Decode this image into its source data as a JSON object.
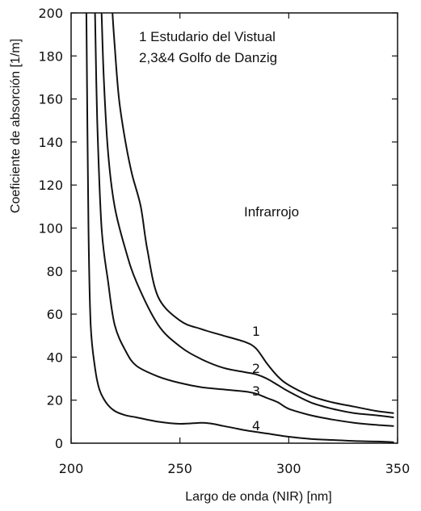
{
  "chart_data": {
    "type": "line",
    "xlabel": "Largo de onda (NIR) [nm]",
    "ylabel": "Coeficiente de absorción [1/m]",
    "xlim": [
      200,
      350
    ],
    "ylim": [
      0,
      200
    ],
    "x_ticks": [
      "200",
      "250",
      "300",
      "350"
    ],
    "y_ticks": [
      "0",
      "20",
      "40",
      "60",
      "80",
      "100",
      "120",
      "140",
      "160",
      "180",
      "200"
    ],
    "x_tick_values": [
      200,
      250,
      300,
      350
    ],
    "y_tick_values": [
      0,
      20,
      40,
      60,
      80,
      100,
      120,
      140,
      160,
      180,
      200
    ],
    "annotations": [
      "1 Estudario del Vistual",
      "2,3&4 Golfo de Danzig",
      "Infrarrojo"
    ],
    "grid": false,
    "series": [
      {
        "label": "1",
        "x": [
          219,
          220,
          222,
          225,
          228,
          232,
          235,
          240,
          250,
          260,
          270,
          280,
          285,
          290,
          295,
          300,
          310,
          320,
          330,
          340,
          348
        ],
        "y": [
          200,
          185,
          160,
          140,
          125,
          110,
          90,
          68,
          57,
          53,
          50,
          47,
          44,
          37,
          31,
          27,
          22,
          19,
          17,
          15,
          14
        ]
      },
      {
        "label": "2",
        "x": [
          214,
          215,
          217,
          220,
          225,
          230,
          240,
          250,
          260,
          270,
          280,
          285,
          290,
          295,
          300,
          310,
          320,
          330,
          340,
          348
        ],
        "y": [
          200,
          170,
          135,
          110,
          90,
          75,
          55,
          45,
          39,
          35,
          33,
          32,
          30,
          27,
          24,
          19,
          16,
          14,
          13,
          12
        ]
      },
      {
        "label": "3",
        "x": [
          211,
          212,
          214,
          217,
          220,
          225,
          230,
          240,
          250,
          260,
          270,
          280,
          285,
          290,
          295,
          300,
          310,
          320,
          330,
          340,
          348
        ],
        "y": [
          200,
          150,
          100,
          75,
          55,
          43,
          36,
          31,
          28,
          26,
          25,
          24,
          23,
          21,
          19,
          16,
          13,
          11,
          9.5,
          8.5,
          8
        ]
      },
      {
        "label": "4",
        "x": [
          207,
          208,
          209,
          211,
          213,
          216,
          220,
          225,
          230,
          240,
          250,
          260,
          265,
          270,
          275,
          280,
          290,
          300,
          310,
          320,
          330,
          340,
          348
        ],
        "y": [
          200,
          100,
          55,
          35,
          25,
          19,
          15,
          13,
          12,
          10,
          9,
          9.5,
          9,
          8,
          7,
          6,
          4.5,
          3,
          2,
          1.5,
          1,
          0.8,
          0.5
        ]
      }
    ]
  }
}
